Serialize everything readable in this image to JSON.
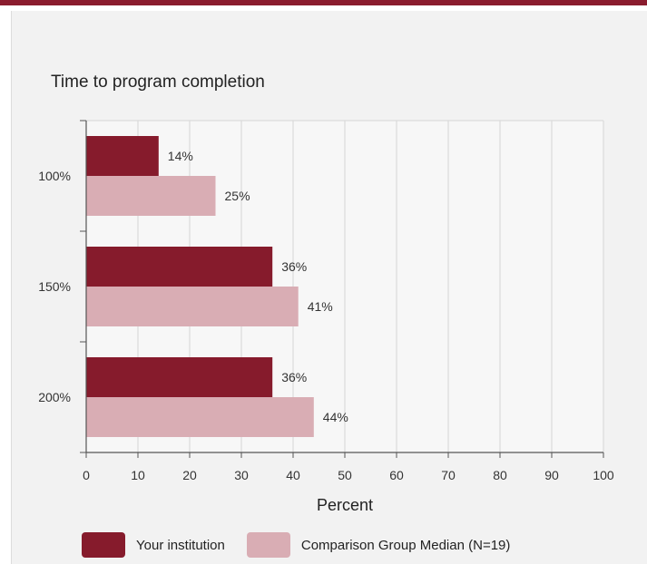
{
  "colors": {
    "institution": "#861b2c",
    "comparison": "#d9adb4",
    "accent": "#8a1c2e"
  },
  "chart_data": {
    "type": "bar",
    "orientation": "horizontal",
    "title": "Time to program completion",
    "xlabel": "Percent",
    "ylabel": "",
    "xlim": [
      0,
      100
    ],
    "xticks": [
      "0",
      "10",
      "20",
      "30",
      "40",
      "50",
      "60",
      "70",
      "80",
      "90",
      "100"
    ],
    "categories": [
      "100%",
      "150%",
      "200%"
    ],
    "grid": true,
    "legend_position": "bottom",
    "series": [
      {
        "name": "Your institution",
        "values": [
          14,
          36,
          36
        ],
        "labels": [
          "14%",
          "36%",
          "36%"
        ]
      },
      {
        "name": "Comparison Group Median (N=19)",
        "values": [
          25,
          41,
          44
        ],
        "labels": [
          "25%",
          "41%",
          "44%"
        ]
      }
    ]
  }
}
